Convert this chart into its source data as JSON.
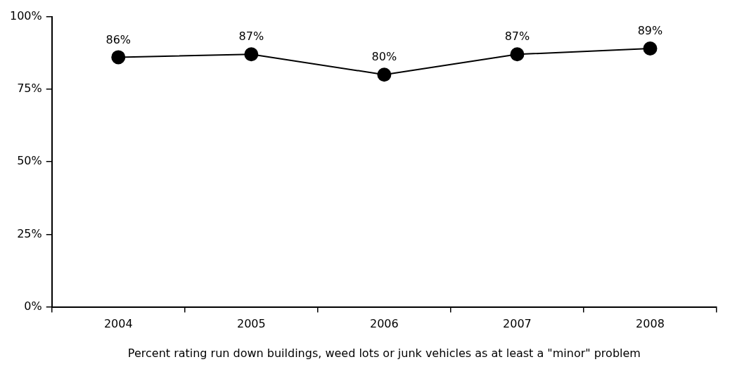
{
  "chart_data": {
    "type": "line",
    "xlabel": "Percent rating run down buildings, weed lots or junk vehicles as at least a \"minor\" problem",
    "categories": [
      "2004",
      "2005",
      "2006",
      "2007",
      "2008"
    ],
    "series": [
      {
        "color": "#000000",
        "values": [
          86,
          87,
          80,
          87,
          89
        ],
        "value_labels": [
          "86%",
          "87%",
          "80%",
          "87%",
          "89%"
        ]
      }
    ],
    "ylim": [
      0,
      100
    ],
    "yticks": [
      {
        "value": 0,
        "label": "0%"
      },
      {
        "value": 25,
        "label": "25%"
      },
      {
        "value": 50,
        "label": "50%"
      },
      {
        "value": 75,
        "label": "75%"
      },
      {
        "value": 100,
        "label": "100%"
      }
    ],
    "grid": false,
    "legend": false,
    "marker": "circle",
    "line_style": "solid"
  }
}
